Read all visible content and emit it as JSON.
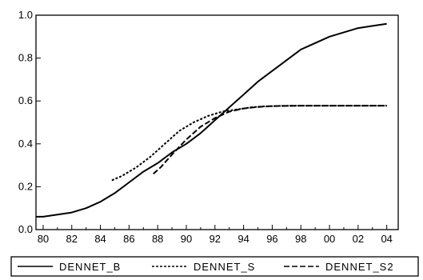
{
  "chart_data": {
    "type": "line",
    "xlabel": "",
    "ylabel": "",
    "xlim": [
      1979.5,
      2004.8
    ],
    "ylim": [
      0.0,
      1.0
    ],
    "grid": false,
    "legend_placement": "bottom",
    "x_ticks": [
      {
        "value": 1980,
        "label": "80"
      },
      {
        "value": 1982,
        "label": "82"
      },
      {
        "value": 1984,
        "label": "84"
      },
      {
        "value": 1986,
        "label": "86"
      },
      {
        "value": 1988,
        "label": "88"
      },
      {
        "value": 1990,
        "label": "90"
      },
      {
        "value": 1992,
        "label": "92"
      },
      {
        "value": 1994,
        "label": "94"
      },
      {
        "value": 1996,
        "label": "96"
      },
      {
        "value": 1998,
        "label": "98"
      },
      {
        "value": 2000,
        "label": "00"
      },
      {
        "value": 2002,
        "label": "02"
      },
      {
        "value": 2004,
        "label": "04"
      }
    ],
    "y_ticks": [
      {
        "value": 0.0,
        "label": "0.0"
      },
      {
        "value": 0.2,
        "label": "0.2"
      },
      {
        "value": 0.4,
        "label": "0.4"
      },
      {
        "value": 0.6,
        "label": "0.6"
      },
      {
        "value": 0.8,
        "label": "0.8"
      },
      {
        "value": 1.0,
        "label": "1.0"
      }
    ],
    "series": [
      {
        "name": "DENNET_B",
        "dash": "solid",
        "x": [
          1979.5,
          1980,
          1981,
          1982,
          1983,
          1984,
          1985,
          1986,
          1987,
          1988,
          1989,
          1990,
          1991,
          1992,
          1993,
          1994,
          1995,
          1996,
          1997,
          1998,
          1999,
          2000,
          2001,
          2002,
          2003,
          2004
        ],
        "y": [
          0.06,
          0.06,
          0.07,
          0.08,
          0.1,
          0.13,
          0.17,
          0.22,
          0.27,
          0.31,
          0.36,
          0.4,
          0.45,
          0.51,
          0.57,
          0.63,
          0.69,
          0.74,
          0.79,
          0.84,
          0.87,
          0.9,
          0.92,
          0.94,
          0.95,
          0.96
        ]
      },
      {
        "name": "DENNET_S",
        "dash": "dotted",
        "x": [
          1984.8,
          1985.5,
          1986.5,
          1987.5,
          1988.5,
          1989.5,
          1990.5,
          1991.5,
          1992.5,
          1993.5,
          1994.5,
          1995.5,
          1996.5,
          1998,
          2000,
          2002,
          2004
        ],
        "y": [
          0.23,
          0.25,
          0.29,
          0.34,
          0.4,
          0.46,
          0.5,
          0.53,
          0.55,
          0.56,
          0.57,
          0.575,
          0.577,
          0.578,
          0.578,
          0.578,
          0.578
        ]
      },
      {
        "name": "DENNET_S2",
        "dash": "dashed",
        "x": [
          1987.7,
          1988.2,
          1989,
          1990,
          1991,
          1992,
          1993,
          1994,
          1995,
          1996,
          1998,
          2000,
          2002,
          2004
        ],
        "y": [
          0.26,
          0.29,
          0.35,
          0.42,
          0.48,
          0.52,
          0.55,
          0.565,
          0.572,
          0.576,
          0.578,
          0.578,
          0.578,
          0.578
        ]
      }
    ]
  }
}
